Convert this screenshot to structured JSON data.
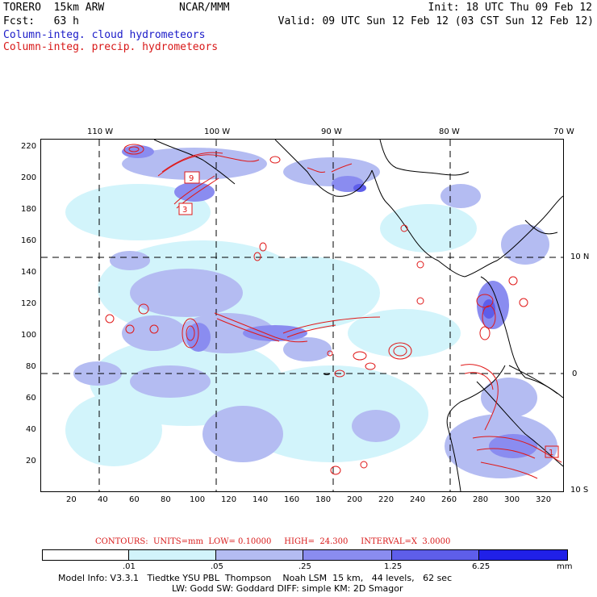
{
  "header": {
    "model": "TORERO  15km ARW",
    "org": "NCAR/MMM",
    "init": "Init: 18 UTC Thu 09 Feb 12",
    "fcst": "Fcst:   63 h",
    "valid": "Valid: 09 UTC Sun 12 Feb 12 (03 CST Sun 12 Feb 12)",
    "legend_cloud": "Column-integ. cloud hydrometeors",
    "legend_precip": "Column-integ. precip. hydrometeors"
  },
  "map": {
    "lon_labels": [
      "110 W",
      "100 W",
      "90 W",
      "80 W",
      "70 W"
    ],
    "lat_labels": [
      "10 N",
      "0",
      "10 S"
    ],
    "y_ticks": [
      "220",
      "200",
      "180",
      "160",
      "140",
      "120",
      "100",
      "80",
      "60",
      "40",
      "20"
    ],
    "x_ticks": [
      "20",
      "40",
      "60",
      "80",
      "100",
      "120",
      "140",
      "160",
      "180",
      "200",
      "220",
      "240",
      "260",
      "280",
      "300",
      "320"
    ],
    "station_labels": [
      "9",
      "3",
      "1"
    ],
    "colors": {
      "level1": "#d2f4fb",
      "level2": "#b4bcf2",
      "level3": "#8a8cf0",
      "level4": "#5e5eea",
      "level5": "#2020e8",
      "contour": "#e01818",
      "coast": "#000000"
    }
  },
  "contour_note": "CONTOURS:  UNITS=mm  LOW= 0.10000     HIGH=  24.300     INTERVAL=X  3.0000",
  "colorbar": {
    "labels": [
      ".01",
      ".05",
      ".25",
      "1.25",
      "6.25"
    ],
    "units": "mm",
    "colors": [
      "#ffffff",
      "#d2f4fb",
      "#b4bcf2",
      "#8a8cf0",
      "#5e5eea",
      "#2020e8"
    ]
  },
  "footer": {
    "line1": "Model Info: V3.3.1   Tiedtke YSU PBL  Thompson    Noah LSM  15 km,   44 levels,   62 sec",
    "line2": "LW: Godd SW: Goddard DIFF: simple KM: 2D Smagor"
  }
}
